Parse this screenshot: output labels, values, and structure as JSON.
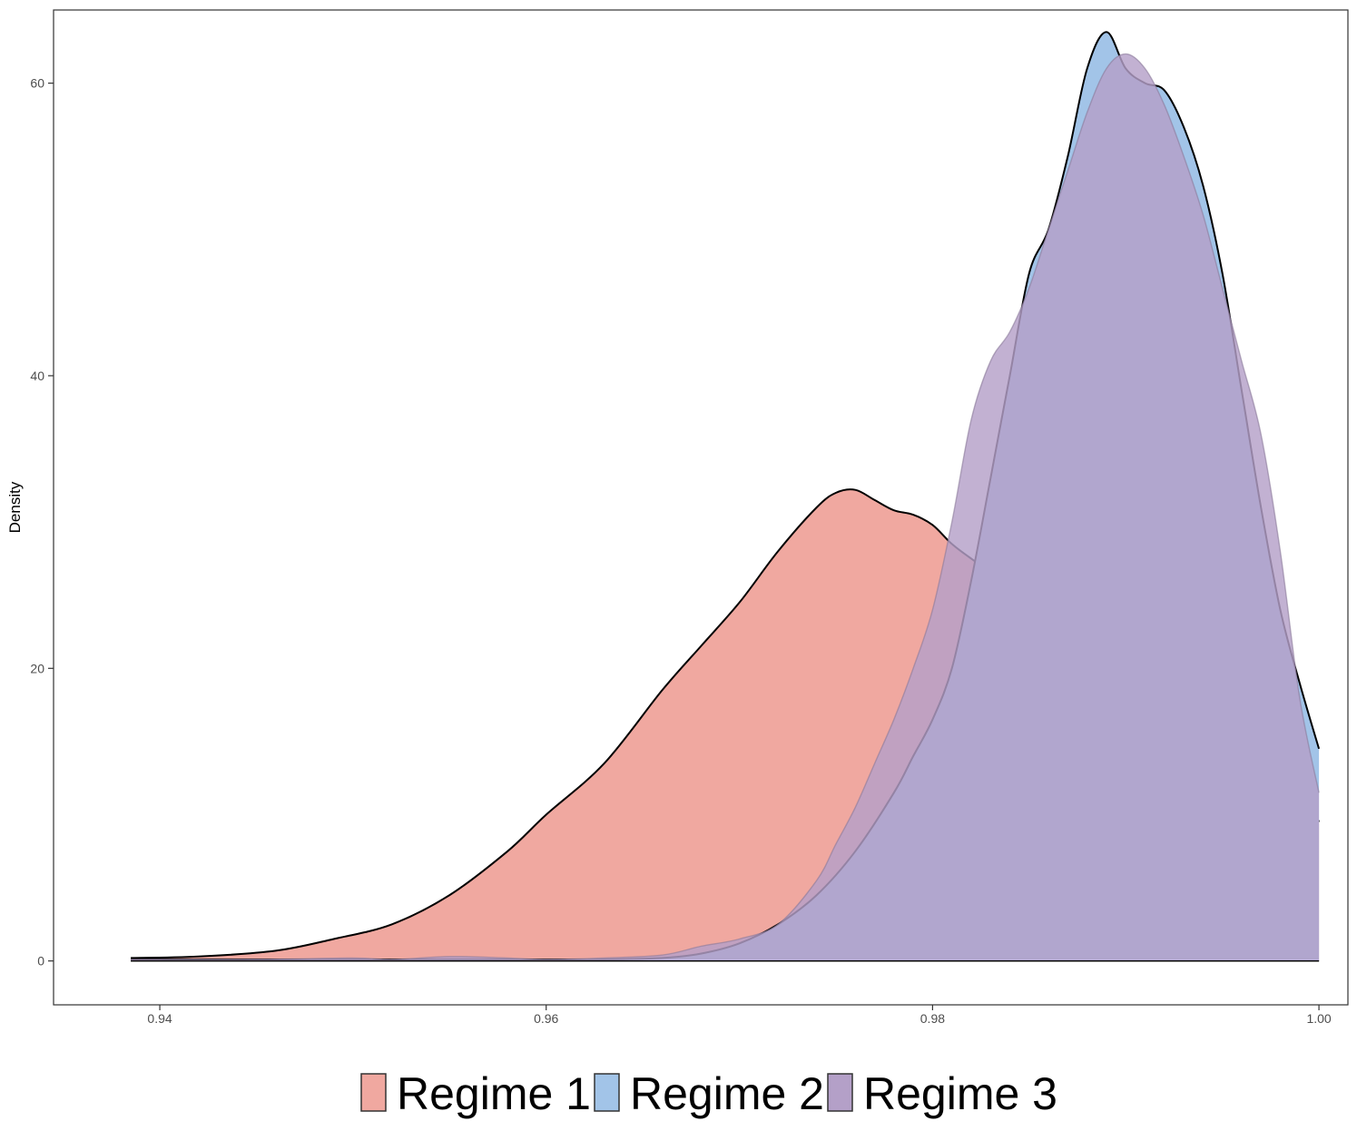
{
  "chart_data": {
    "type": "area",
    "title": "",
    "xlabel": "",
    "ylabel": "Density",
    "xlim": [
      0.9345,
      1.0015
    ],
    "ylim": [
      -3,
      65
    ],
    "x_ticks": [
      0.94,
      0.96,
      0.98,
      1.0
    ],
    "x_tick_labels": [
      "0.94",
      "0.96",
      "0.98",
      "1.00"
    ],
    "y_ticks": [
      0,
      20,
      40,
      60
    ],
    "y_tick_labels": [
      "0",
      "20",
      "40",
      "60"
    ],
    "grid": false,
    "legend": {
      "position": "bottom",
      "orientation": "horizontal"
    },
    "series": [
      {
        "name": "Regime 1",
        "color": "#F8766D",
        "fill": "#F0A8A0",
        "x": [
          0.9385,
          0.942,
          0.946,
          0.949,
          0.952,
          0.955,
          0.958,
          0.96,
          0.963,
          0.966,
          0.968,
          0.97,
          0.972,
          0.974,
          0.975,
          0.976,
          0.977,
          0.978,
          0.979,
          0.98,
          0.981,
          0.982,
          0.984,
          0.986,
          0.988,
          0.99,
          0.992,
          0.994,
          0.996,
          0.998,
          1.0
        ],
        "values": [
          0.2,
          0.3,
          0.7,
          1.5,
          2.5,
          4.5,
          7.5,
          10,
          13.5,
          18.5,
          21.5,
          24.5,
          28,
          31,
          32,
          32.2,
          31.5,
          30.8,
          30.5,
          29.8,
          28.5,
          27.5,
          25.7,
          25.0,
          24.6,
          23.8,
          23.2,
          22.5,
          20.0,
          15.5,
          9.5
        ]
      },
      {
        "name": "Regime 2",
        "color": "#A6C8EA",
        "fill": "#A2C4E8",
        "x": [
          0.9385,
          0.945,
          0.95,
          0.952,
          0.955,
          0.958,
          0.96,
          0.963,
          0.966,
          0.968,
          0.97,
          0.972,
          0.974,
          0.976,
          0.978,
          0.979,
          0.98,
          0.981,
          0.982,
          0.983,
          0.984,
          0.985,
          0.986,
          0.987,
          0.988,
          0.989,
          0.99,
          0.991,
          0.992,
          0.993,
          0.994,
          0.995,
          0.996,
          0.997,
          0.998,
          0.999,
          1.0
        ],
        "values": [
          0.1,
          0.1,
          0.1,
          0.1,
          0.1,
          0.1,
          0.1,
          0.1,
          0.2,
          0.5,
          1.2,
          2.5,
          4.5,
          7.5,
          11.5,
          14,
          16.5,
          20,
          26,
          33,
          40,
          47,
          50,
          55,
          61,
          63.5,
          61,
          60,
          59.5,
          57,
          53,
          47,
          39,
          31,
          24,
          19,
          14.5
        ]
      },
      {
        "name": "Regime 3",
        "color": "#C3B0CC",
        "fill": "#B4A0C8",
        "x": [
          0.9385,
          0.945,
          0.95,
          0.952,
          0.955,
          0.958,
          0.96,
          0.963,
          0.966,
          0.968,
          0.97,
          0.972,
          0.974,
          0.975,
          0.976,
          0.977,
          0.978,
          0.979,
          0.98,
          0.981,
          0.982,
          0.983,
          0.984,
          0.985,
          0.986,
          0.987,
          0.988,
          0.989,
          0.99,
          0.991,
          0.992,
          0.993,
          0.994,
          0.995,
          0.996,
          0.997,
          0.998,
          0.999,
          1.0
        ],
        "values": [
          0.1,
          0.1,
          0.2,
          0.1,
          0.3,
          0.2,
          0.1,
          0.2,
          0.4,
          1.0,
          1.5,
          2.5,
          5.5,
          8.0,
          10.5,
          13.5,
          16.5,
          20,
          24,
          30,
          37,
          41,
          43,
          46,
          50,
          54,
          58,
          61,
          62,
          61,
          58.5,
          55,
          51,
          46,
          41,
          36,
          28,
          18,
          11.5
        ]
      }
    ]
  }
}
